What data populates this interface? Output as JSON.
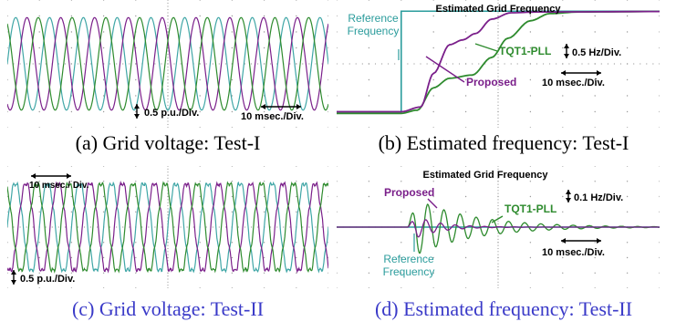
{
  "colors": {
    "grid": "#9a9a9a",
    "phase_a": "#3fa6a6",
    "phase_b": "#7a1f8a",
    "phase_c": "#2e8b2e",
    "reference": "#2b9c9c",
    "proposed": "#7a1f8a",
    "tqt1": "#2e8b2e",
    "caption_black": "#000000",
    "caption_blue": "#3a3ac8"
  },
  "chart_data": [
    {
      "id": "a",
      "type": "line",
      "caption": "(a) Grid voltage: Test-I",
      "annotations": {
        "v_scale": "0.5 p.u./Div.",
        "t_scale": "10 msec./Div."
      },
      "waveform": {
        "cycles": 9.5,
        "amplitude_div": 2.9,
        "noise": false
      },
      "series": [
        {
          "phase_deg": 0
        },
        {
          "phase_deg": -120
        },
        {
          "phase_deg": 120
        }
      ]
    },
    {
      "id": "b",
      "type": "line",
      "title": "Estimated Grid Frequency",
      "caption": "(b) Estimated frequency: Test-I",
      "annotations": {
        "v_scale": "0.5 Hz/Div.",
        "t_scale": "10 msec./Div."
      },
      "series": [
        {
          "name": "Reference\nFrequency",
          "key": "reference",
          "step_time_div": 2.0,
          "from_level_div": 7.0,
          "to_level_div": 0.7
        },
        {
          "name": "Proposed",
          "key": "proposed"
        },
        {
          "name": "TQT1-PLL",
          "key": "tqt1"
        }
      ],
      "proposed_curve": [
        [
          0,
          7.0
        ],
        [
          2.0,
          7.0
        ],
        [
          2.6,
          6.7
        ],
        [
          3.0,
          4.6
        ],
        [
          3.5,
          2.8
        ],
        [
          3.9,
          2.5
        ],
        [
          4.3,
          2.1
        ],
        [
          4.8,
          1.2
        ],
        [
          5.4,
          0.8
        ],
        [
          6.2,
          0.75
        ],
        [
          10,
          0.72
        ]
      ],
      "tqt1_curve": [
        [
          0,
          7.1
        ],
        [
          2.0,
          7.1
        ],
        [
          2.5,
          6.9
        ],
        [
          3.0,
          5.5
        ],
        [
          3.5,
          4.9
        ],
        [
          4.2,
          4.7
        ],
        [
          4.8,
          3.6
        ],
        [
          5.3,
          2.4
        ],
        [
          6.0,
          1.3
        ],
        [
          6.6,
          0.85
        ],
        [
          7.5,
          0.75
        ],
        [
          10,
          0.72
        ]
      ]
    },
    {
      "id": "c",
      "type": "line",
      "caption": "(c) Grid voltage: Test-II",
      "annotations": {
        "v_scale": "0.5 p.u./Div.",
        "t_scale": "10 msec./ Div."
      },
      "waveform": {
        "cycles": 10,
        "amplitude_div": 2.9,
        "noise": true
      },
      "series": [
        {
          "phase_deg": 0
        },
        {
          "phase_deg": -120
        },
        {
          "phase_deg": 120
        }
      ]
    },
    {
      "id": "d",
      "type": "line",
      "title": "Estimated Grid Frequency",
      "caption": "(d) Estimated frequency: Test-II",
      "annotations": {
        "v_scale": "0.1 Hz/Div.",
        "t_scale": "10 msec./Div."
      },
      "series": [
        {
          "name": "Proposed",
          "key": "proposed"
        },
        {
          "name": "TQT1-PLL",
          "key": "tqt1"
        },
        {
          "name": "Reference\nFrequency",
          "key": "reference"
        }
      ],
      "baseline_div": 4.0,
      "proposed_osc": {
        "start_div": 2.2,
        "freq_per_div": 2.2,
        "amp_div": 1.0,
        "decay": 1.3
      },
      "tqt1_osc": {
        "start_div": 2.2,
        "freq_per_div": 2.0,
        "amp_div": 2.1,
        "decay": 0.55
      }
    }
  ]
}
